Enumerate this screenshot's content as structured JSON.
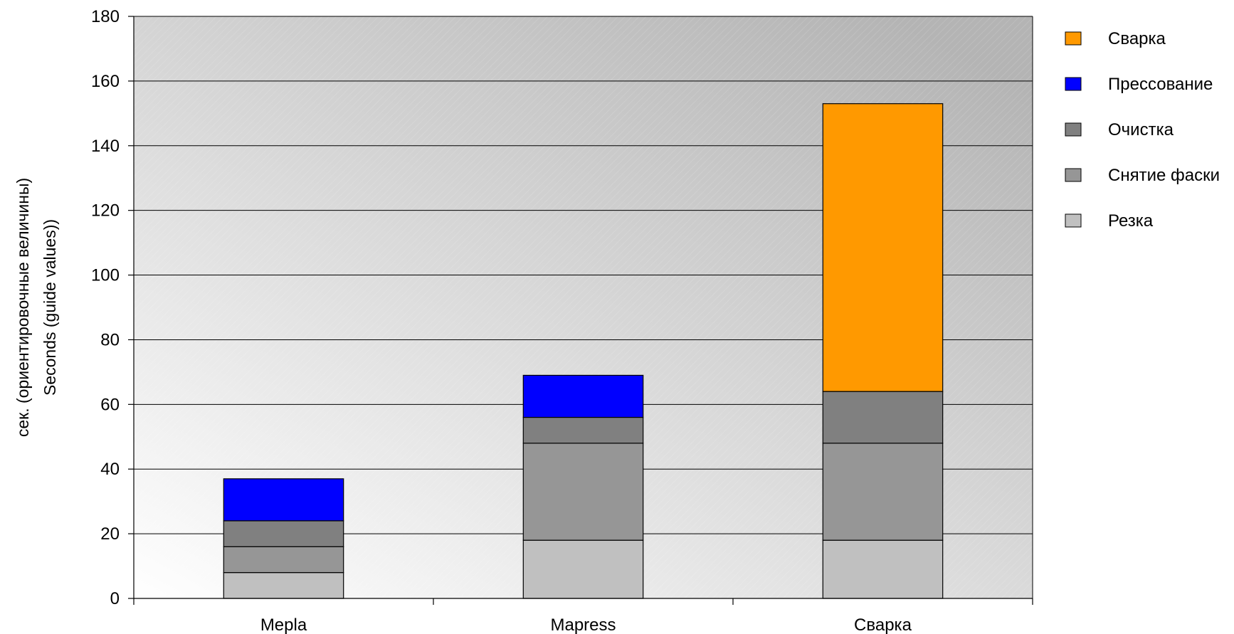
{
  "chart_data": {
    "type": "bar",
    "stacked": true,
    "categories": [
      "Mepla",
      "Mapress",
      "Сварка"
    ],
    "series": [
      {
        "name": "Резка",
        "values": [
          8,
          18,
          18
        ],
        "color": "#c0c0c0"
      },
      {
        "name": "Снятие фаски",
        "values": [
          8,
          30,
          30
        ],
        "color": "#969696"
      },
      {
        "name": "Очистка",
        "values": [
          8,
          8,
          16
        ],
        "color": "#808080"
      },
      {
        "name": "Прессование",
        "values": [
          13,
          13,
          0
        ],
        "color": "#0000ff"
      },
      {
        "name": "Сварка",
        "values": [
          0,
          0,
          89
        ],
        "color": "#ff9900"
      }
    ],
    "ylabel_line1": "сек. (ориентировочные величины)",
    "ylabel_line2": "Seconds (guide values))",
    "ylim": [
      0,
      180
    ],
    "yticks": [
      0,
      20,
      40,
      60,
      80,
      100,
      120,
      140,
      160,
      180
    ],
    "grid": true,
    "legend_position": "right"
  }
}
